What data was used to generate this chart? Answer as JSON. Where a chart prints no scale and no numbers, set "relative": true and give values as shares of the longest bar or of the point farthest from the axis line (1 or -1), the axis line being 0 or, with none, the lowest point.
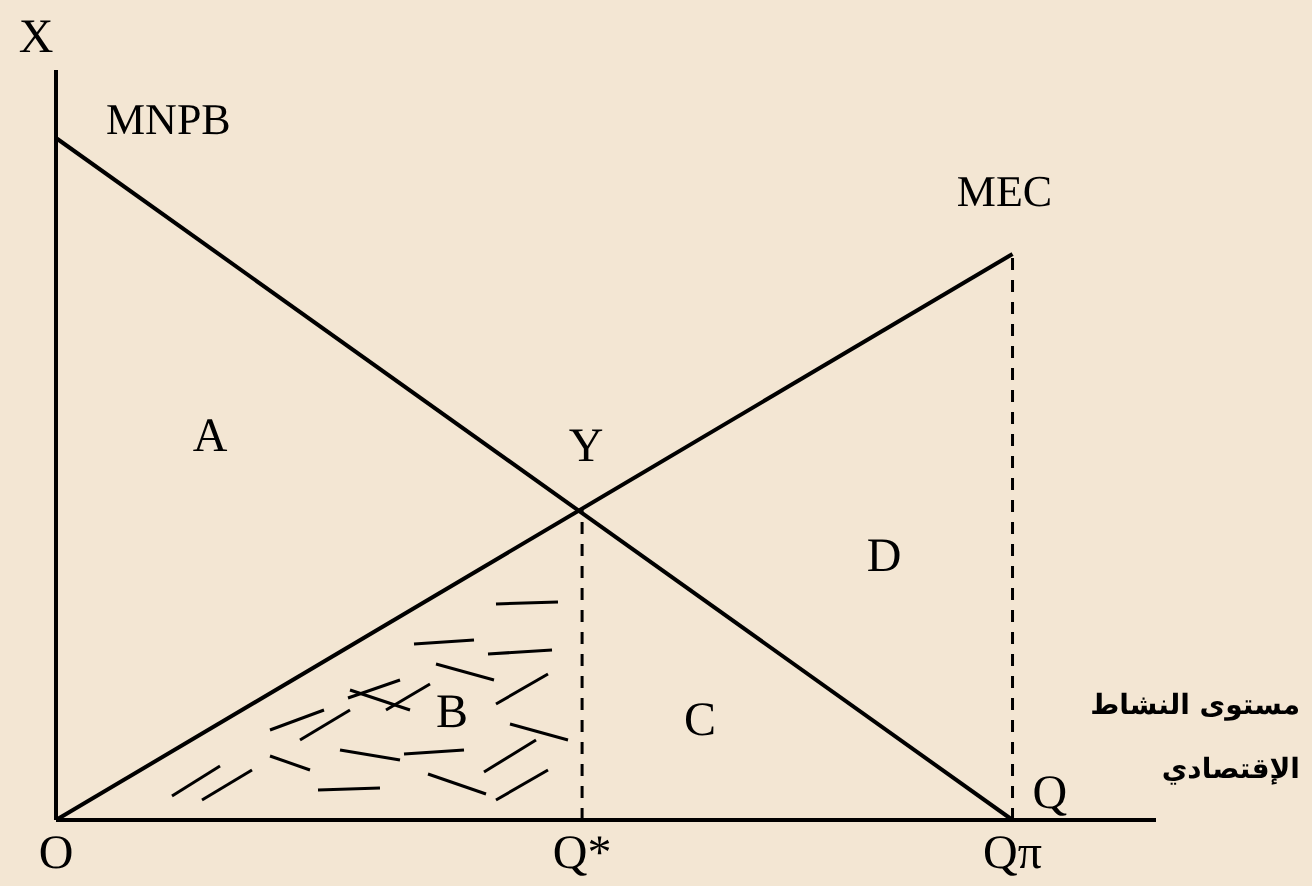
{
  "chart_data": {
    "type": "line",
    "relative": true,
    "ylabel": "X",
    "xlabel": "Q",
    "categories": [
      "O",
      null,
      null,
      null,
      null,
      null,
      null,
      null,
      null,
      null,
      null,
      "Q*",
      null,
      null,
      null,
      null,
      null,
      null,
      null,
      null,
      "Qπ",
      null,
      null,
      null
    ],
    "series": [
      {
        "name": "MNPB",
        "color": "#000000",
        "x": [
          "O",
          "Qπ"
        ],
        "values": [
          1,
          0
        ]
      },
      {
        "name": "MEC",
        "color": "#000000",
        "x": [
          "O",
          "Qπ"
        ],
        "values": [
          0,
          0.83
        ]
      }
    ],
    "ref_lines": [
      {
        "axis": "x",
        "value": "Q*",
        "line_style": "dashed"
      },
      {
        "axis": "x",
        "value": "Qπ",
        "line_style": "dashed"
      }
    ],
    "annotations": [
      "A",
      "Y",
      "B",
      "C",
      "D",
      "مستوى النشاط",
      "الإقتصادي"
    ],
    "legend": false,
    "marker": "none",
    "line_style": "solid"
  }
}
